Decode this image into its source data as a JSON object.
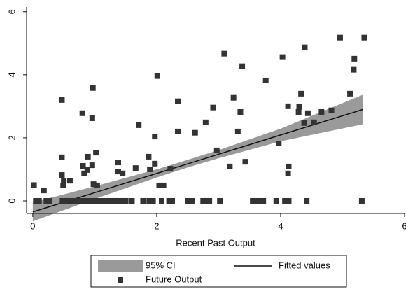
{
  "chart_data": {
    "type": "scatter",
    "x_label": "Recent Past Output",
    "xlim": [
      -0.1,
      6
    ],
    "ylim": [
      -0.4,
      6.15
    ],
    "xticks": [
      0,
      2,
      4,
      6
    ],
    "yticks": [
      0,
      2,
      4,
      6
    ],
    "legend": "bottom",
    "series": [
      {
        "name": "95% CI",
        "kind": "band",
        "color": "#9a9a9a",
        "x": [
          0,
          1,
          2,
          2.5,
          3,
          4,
          5.33
        ],
        "lower": [
          -0.65,
          0.06,
          0.74,
          1.06,
          1.35,
          1.89,
          2.43
        ],
        "upper": [
          -0.05,
          0.46,
          1.0,
          1.3,
          1.61,
          2.29,
          3.37
        ]
      },
      {
        "name": "Fitted values",
        "kind": "line",
        "color": "#111111",
        "x": [
          0,
          5.33
        ],
        "values": [
          -0.35,
          2.9
        ]
      },
      {
        "name": "Future Output",
        "kind": "points",
        "color": "#333333",
        "x": [
          0.02,
          0.18,
          0.47,
          0.47,
          0.47,
          0.5,
          0.49,
          0.6,
          0.8,
          0.81,
          0.83,
          0.89,
          0.88,
          0.96,
          0.97,
          1.02,
          0.96,
          1.04,
          0.98,
          1.38,
          1.45,
          1.38,
          1.66,
          1.71,
          1.87,
          1.89,
          1.97,
          2.01,
          1.97,
          2.04,
          2.11,
          2.22,
          2.34,
          2.34,
          2.62,
          2.79,
          2.91,
          2.97,
          3.09,
          3.18,
          3.24,
          3.31,
          3.35,
          3.38,
          3.43,
          3.76,
          3.97,
          4.03,
          4.12,
          4.13,
          4.12,
          4.29,
          4.33,
          4.3,
          4.38,
          4.39,
          4.44,
          4.54,
          4.66,
          4.82,
          4.96,
          5.12,
          5.18,
          5.19,
          5.35,
          0.05,
          0.1,
          0.22,
          0.27,
          0.48,
          0.54,
          0.6,
          0.66,
          0.72,
          0.78,
          0.84,
          0.9,
          0.96,
          1.02,
          1.08,
          1.14,
          1.2,
          1.26,
          1.32,
          1.38,
          1.44,
          1.5,
          1.6,
          1.78,
          1.88,
          1.94,
          2.08,
          2.2,
          2.25,
          2.5,
          2.57,
          2.75,
          2.8,
          2.85,
          3.02,
          3.55,
          3.6,
          3.66,
          3.72,
          3.93,
          4.07,
          4.13,
          4.42,
          5.31
        ],
        "values": [
          0.5,
          0.33,
          3.2,
          1.38,
          0.82,
          0.64,
          0.49,
          0.64,
          2.78,
          1.11,
          0.87,
          1.4,
          0.98,
          2.62,
          3.58,
          1.53,
          1.13,
          0.49,
          0.53,
          1.22,
          0.87,
          0.93,
          1.04,
          2.4,
          1.4,
          1.0,
          1.18,
          3.96,
          2.04,
          0.49,
          0.49,
          1.02,
          3.16,
          2.2,
          2.16,
          2.49,
          2.96,
          1.6,
          4.67,
          1.09,
          3.27,
          2.2,
          2.82,
          4.27,
          1.24,
          3.82,
          1.82,
          4.56,
          3.0,
          1.09,
          0.87,
          2.82,
          3.4,
          2.98,
          2.47,
          4.87,
          2.78,
          2.49,
          2.82,
          2.87,
          5.18,
          3.4,
          4.16,
          4.51,
          5.18,
          0,
          0,
          0,
          0,
          0,
          0,
          0,
          0,
          0,
          0,
          0,
          0,
          0,
          0,
          0,
          0,
          0,
          0,
          0,
          0,
          0,
          0,
          0,
          0,
          0,
          0,
          0,
          0,
          0,
          0,
          0,
          0,
          0,
          0,
          0,
          0,
          0,
          0,
          0,
          0,
          0,
          0,
          0,
          0
        ]
      }
    ]
  }
}
